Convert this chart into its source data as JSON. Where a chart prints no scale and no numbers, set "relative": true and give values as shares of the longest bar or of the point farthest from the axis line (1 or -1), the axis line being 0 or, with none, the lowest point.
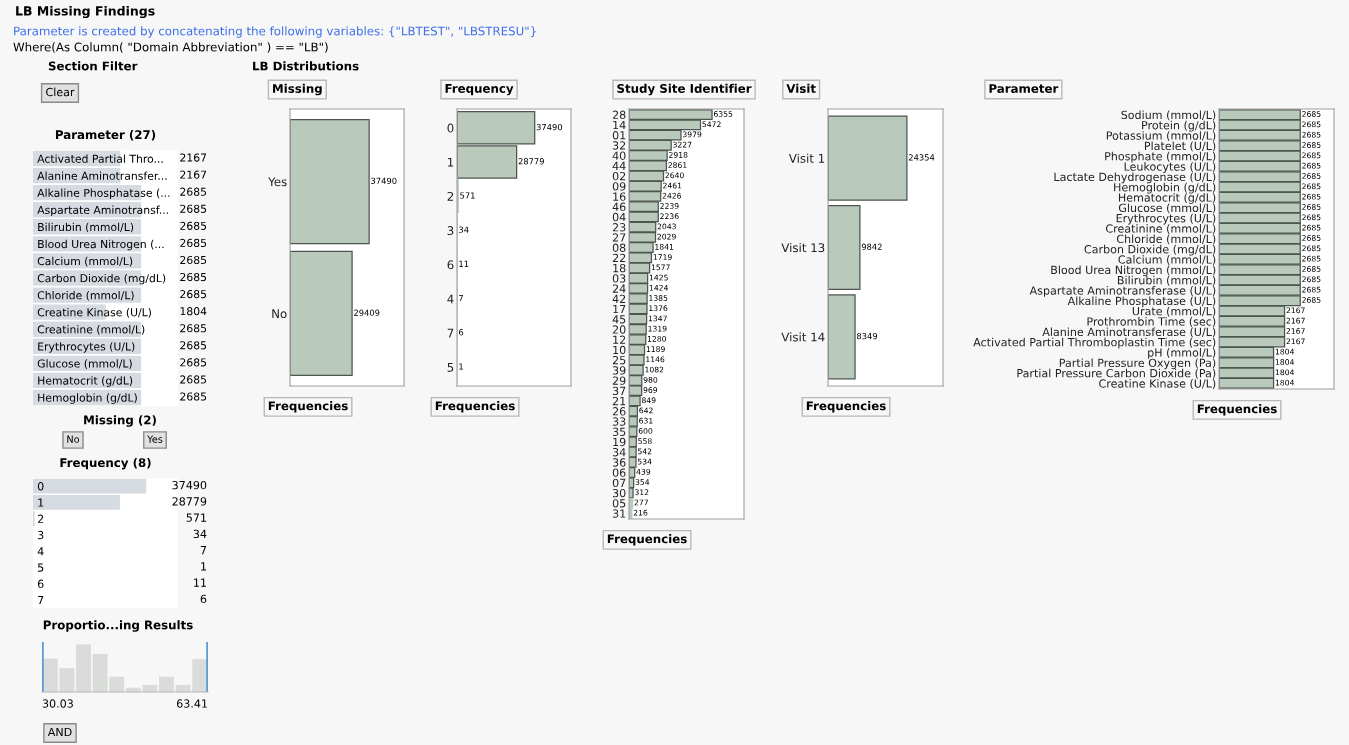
{
  "chart_data": [
    {
      "type": "other",
      "title": "LB Missing Findings",
      "annotations": [
        "Parameter is created by concatenating the following variables: {\"LBTEST\", \"LBSTRESU\"}",
        "Where(As Column( \"Domain Abbreviation\" ) == \"LB\")",
        "Section Filter",
        "Clear",
        "LB Distributions",
        "AND"
      ]
    },
    {
      "type": "bar",
      "orientation": "horizontal",
      "title": "Parameter (27)",
      "color": "#d6dbe2",
      "data_labels": true,
      "xlim": [
        0,
        3600
      ],
      "tick_labels": "y",
      "categories": [
        "Activated Partial Thro...",
        "Alanine Aminotransfer...",
        "Alkaline Phosphatase (...",
        "Aspartate Aminotransf...",
        "Bilirubin (mmol/L)",
        "Blood Urea Nitrogen (...",
        "Calcium (mmol/L)",
        "Carbon Dioxide (mg/dL)",
        "Chloride (mmol/L)",
        "Creatine Kinase (U/L)",
        "Creatinine (mmol/L)",
        "Erythrocytes (U/L)",
        "Glucose (mmol/L)",
        "Hematocrit (g/dL)",
        "Hemoglobin (g/dL)"
      ],
      "values": [
        2167,
        2167,
        2685,
        2685,
        2685,
        2685,
        2685,
        2685,
        2685,
        1804,
        2685,
        2685,
        2685,
        2685,
        2685
      ]
    },
    {
      "type": "other",
      "title": "Missing (2)",
      "annotations": [
        "No",
        "Yes"
      ]
    },
    {
      "type": "bar",
      "orientation": "horizontal",
      "title": "Frequency (8)",
      "color": "#d6dbe2",
      "data_labels": true,
      "xlim": [
        0,
        48000
      ],
      "tick_labels": "y",
      "categories": [
        "0",
        "1",
        "2",
        "3",
        "4",
        "5",
        "6",
        "7"
      ],
      "values": [
        37490,
        28779,
        571,
        34,
        7,
        1,
        11,
        6
      ]
    },
    {
      "type": "bar",
      "title": "Proportio...ing Results",
      "relative": true,
      "color": "#d9dcd8",
      "annotations": [
        "30.03",
        "63.41"
      ],
      "categories": [
        null,
        null,
        null,
        null,
        null,
        null,
        null,
        null,
        null,
        null
      ],
      "values": [
        0.7,
        0.5,
        1,
        0.8,
        0.32,
        0.09,
        0.15,
        0.32,
        0.15,
        0.69
      ]
    },
    {
      "type": "bar",
      "orientation": "horizontal",
      "title": "Missing",
      "color": "#b9c9bb",
      "data_labels": true,
      "xlim": [
        0,
        54000
      ],
      "tick_labels": "y",
      "annotations": [
        "Frequencies"
      ],
      "categories": [
        "Yes",
        "No"
      ],
      "values": [
        37490,
        29409
      ]
    },
    {
      "type": "bar",
      "orientation": "horizontal",
      "title": "Frequency",
      "color": "#b9c9bb",
      "data_labels": true,
      "xlim": [
        0,
        55000
      ],
      "tick_labels": "y",
      "annotations": [
        "Frequencies"
      ],
      "categories": [
        "0",
        "1",
        "2",
        "3",
        "6",
        "4",
        "7",
        "5"
      ],
      "values": [
        37490,
        28779,
        571,
        34,
        11,
        7,
        6,
        1
      ]
    },
    {
      "type": "bar",
      "orientation": "horizontal",
      "title": "Study Site Identifier",
      "color": "#b9c9bb",
      "data_labels": true,
      "xlim": [
        0,
        8800
      ],
      "tick_labels": "y",
      "annotations": [
        "Frequencies"
      ],
      "categories": [
        "28",
        "14",
        "01",
        "32",
        "40",
        "44",
        "02",
        "09",
        "16",
        "46",
        "04",
        "23",
        "27",
        "08",
        "22",
        "18",
        "03",
        "24",
        "42",
        "17",
        "45",
        "20",
        "12",
        "10",
        "25",
        "39",
        "29",
        "37",
        "21",
        "26",
        "33",
        "35",
        "19",
        "34",
        "36",
        "06",
        "07",
        "30",
        "05",
        "31"
      ],
      "values": [
        6355,
        5472,
        3979,
        3227,
        2918,
        2861,
        2640,
        2461,
        2426,
        2239,
        2236,
        2043,
        2029,
        1841,
        1719,
        1577,
        1425,
        1424,
        1385,
        1376,
        1347,
        1319,
        1280,
        1189,
        1146,
        1082,
        980,
        969,
        849,
        642,
        631,
        600,
        558,
        542,
        534,
        439,
        354,
        312,
        277,
        216
      ]
    },
    {
      "type": "bar",
      "orientation": "horizontal",
      "title": "Visit",
      "color": "#b9c9bb",
      "data_labels": true,
      "xlim": [
        0,
        35500
      ],
      "tick_labels": "y",
      "annotations": [
        "Frequencies"
      ],
      "categories": [
        "Visit 1",
        "Visit 13",
        "Visit 14"
      ],
      "values": [
        24354,
        9842,
        8349
      ]
    },
    {
      "type": "bar",
      "orientation": "horizontal",
      "title": "Parameter",
      "color": "#b9c9bb",
      "data_labels": true,
      "xlim": [
        0,
        3800
      ],
      "tick_labels": "y",
      "annotations": [
        "Frequencies"
      ],
      "categories": [
        "Sodium (mmol/L)",
        "Protein (g/dL)",
        "Potassium (mmol/L)",
        "Platelet (U/L)",
        "Phosphate (mmol/L)",
        "Leukocytes (U/L)",
        "Lactate Dehydrogenase (U/L)",
        "Hemoglobin (g/dL)",
        "Hematocrit (g/dL)",
        "Glucose (mmol/L)",
        "Erythrocytes (U/L)",
        "Creatinine (mmol/L)",
        "Chloride (mmol/L)",
        "Carbon Dioxide (mg/dL)",
        "Calcium (mmol/L)",
        "Blood Urea Nitrogen (mmol/L)",
        "Bilirubin (mmol/L)",
        "Aspartate Aminotransferase (U/L)",
        "Alkaline Phosphatase (U/L)",
        "Urate (mmol/L)",
        "Prothrombin Time (sec)",
        "Alanine Aminotransferase (U/L)",
        "Activated Partial Thromboplastin Time (sec)",
        "pH (mmol/L)",
        "Partial Pressure Oxygen (Pa)",
        "Partial Pressure Carbon Dioxide (Pa)",
        "Creatine Kinase (U/L)"
      ],
      "values": [
        2685,
        2685,
        2685,
        2685,
        2685,
        2685,
        2685,
        2685,
        2685,
        2685,
        2685,
        2685,
        2685,
        2685,
        2685,
        2685,
        2685,
        2685,
        2685,
        2167,
        2167,
        2167,
        2167,
        1804,
        1804,
        1804,
        1804
      ]
    }
  ]
}
